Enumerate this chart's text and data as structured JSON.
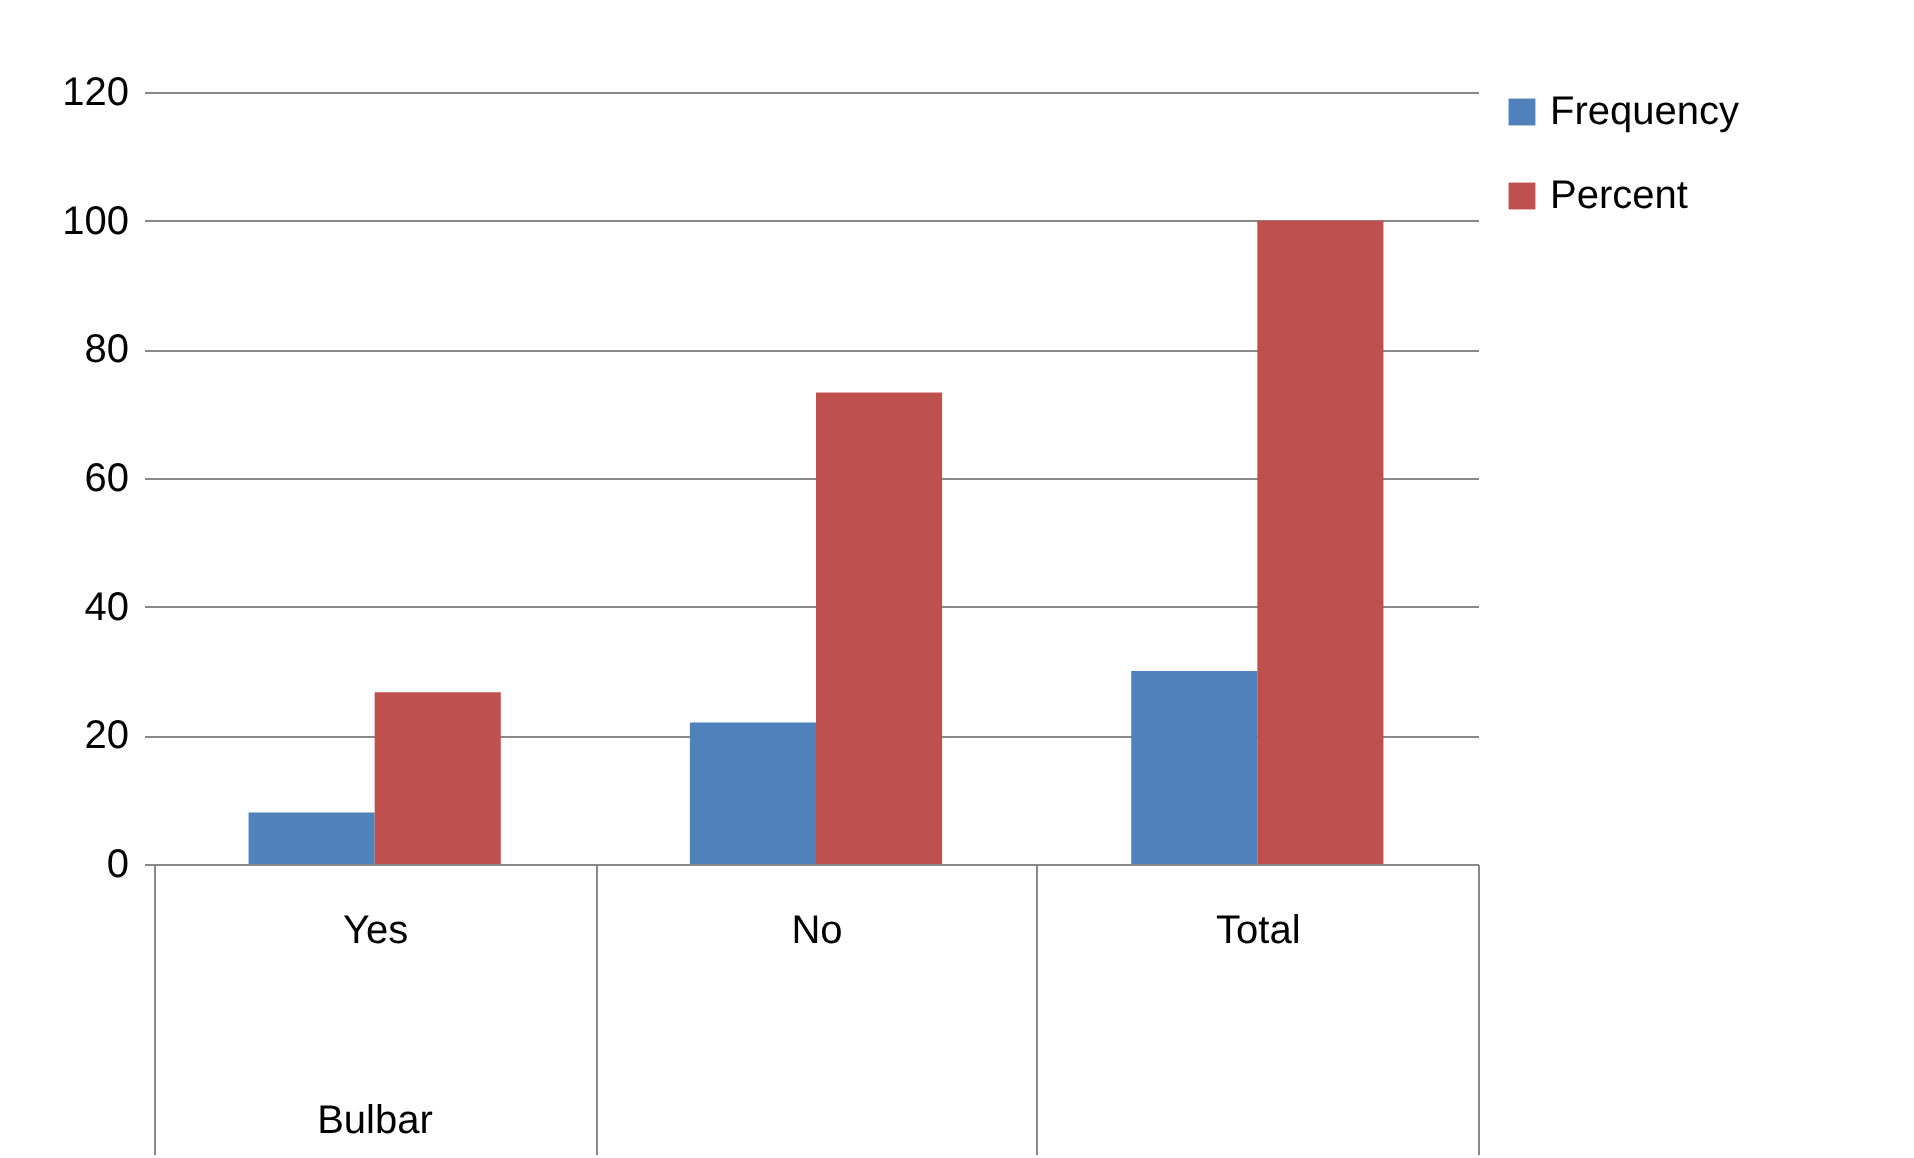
{
  "chart_data": {
    "type": "bar",
    "categories": [
      "Yes",
      "No",
      "Total"
    ],
    "xlabel": "Bulbar",
    "series": [
      {
        "name": "Frequency",
        "color": "#4f81bd",
        "values": [
          8,
          22,
          30
        ]
      },
      {
        "name": "Percent",
        "color": "#c0504d",
        "values": [
          26.7,
          73.3,
          100
        ]
      }
    ],
    "ylim": [
      0,
      120
    ],
    "yticks": [
      0,
      20,
      40,
      60,
      80,
      100,
      120
    ],
    "grid": "y",
    "legend": "right"
  }
}
